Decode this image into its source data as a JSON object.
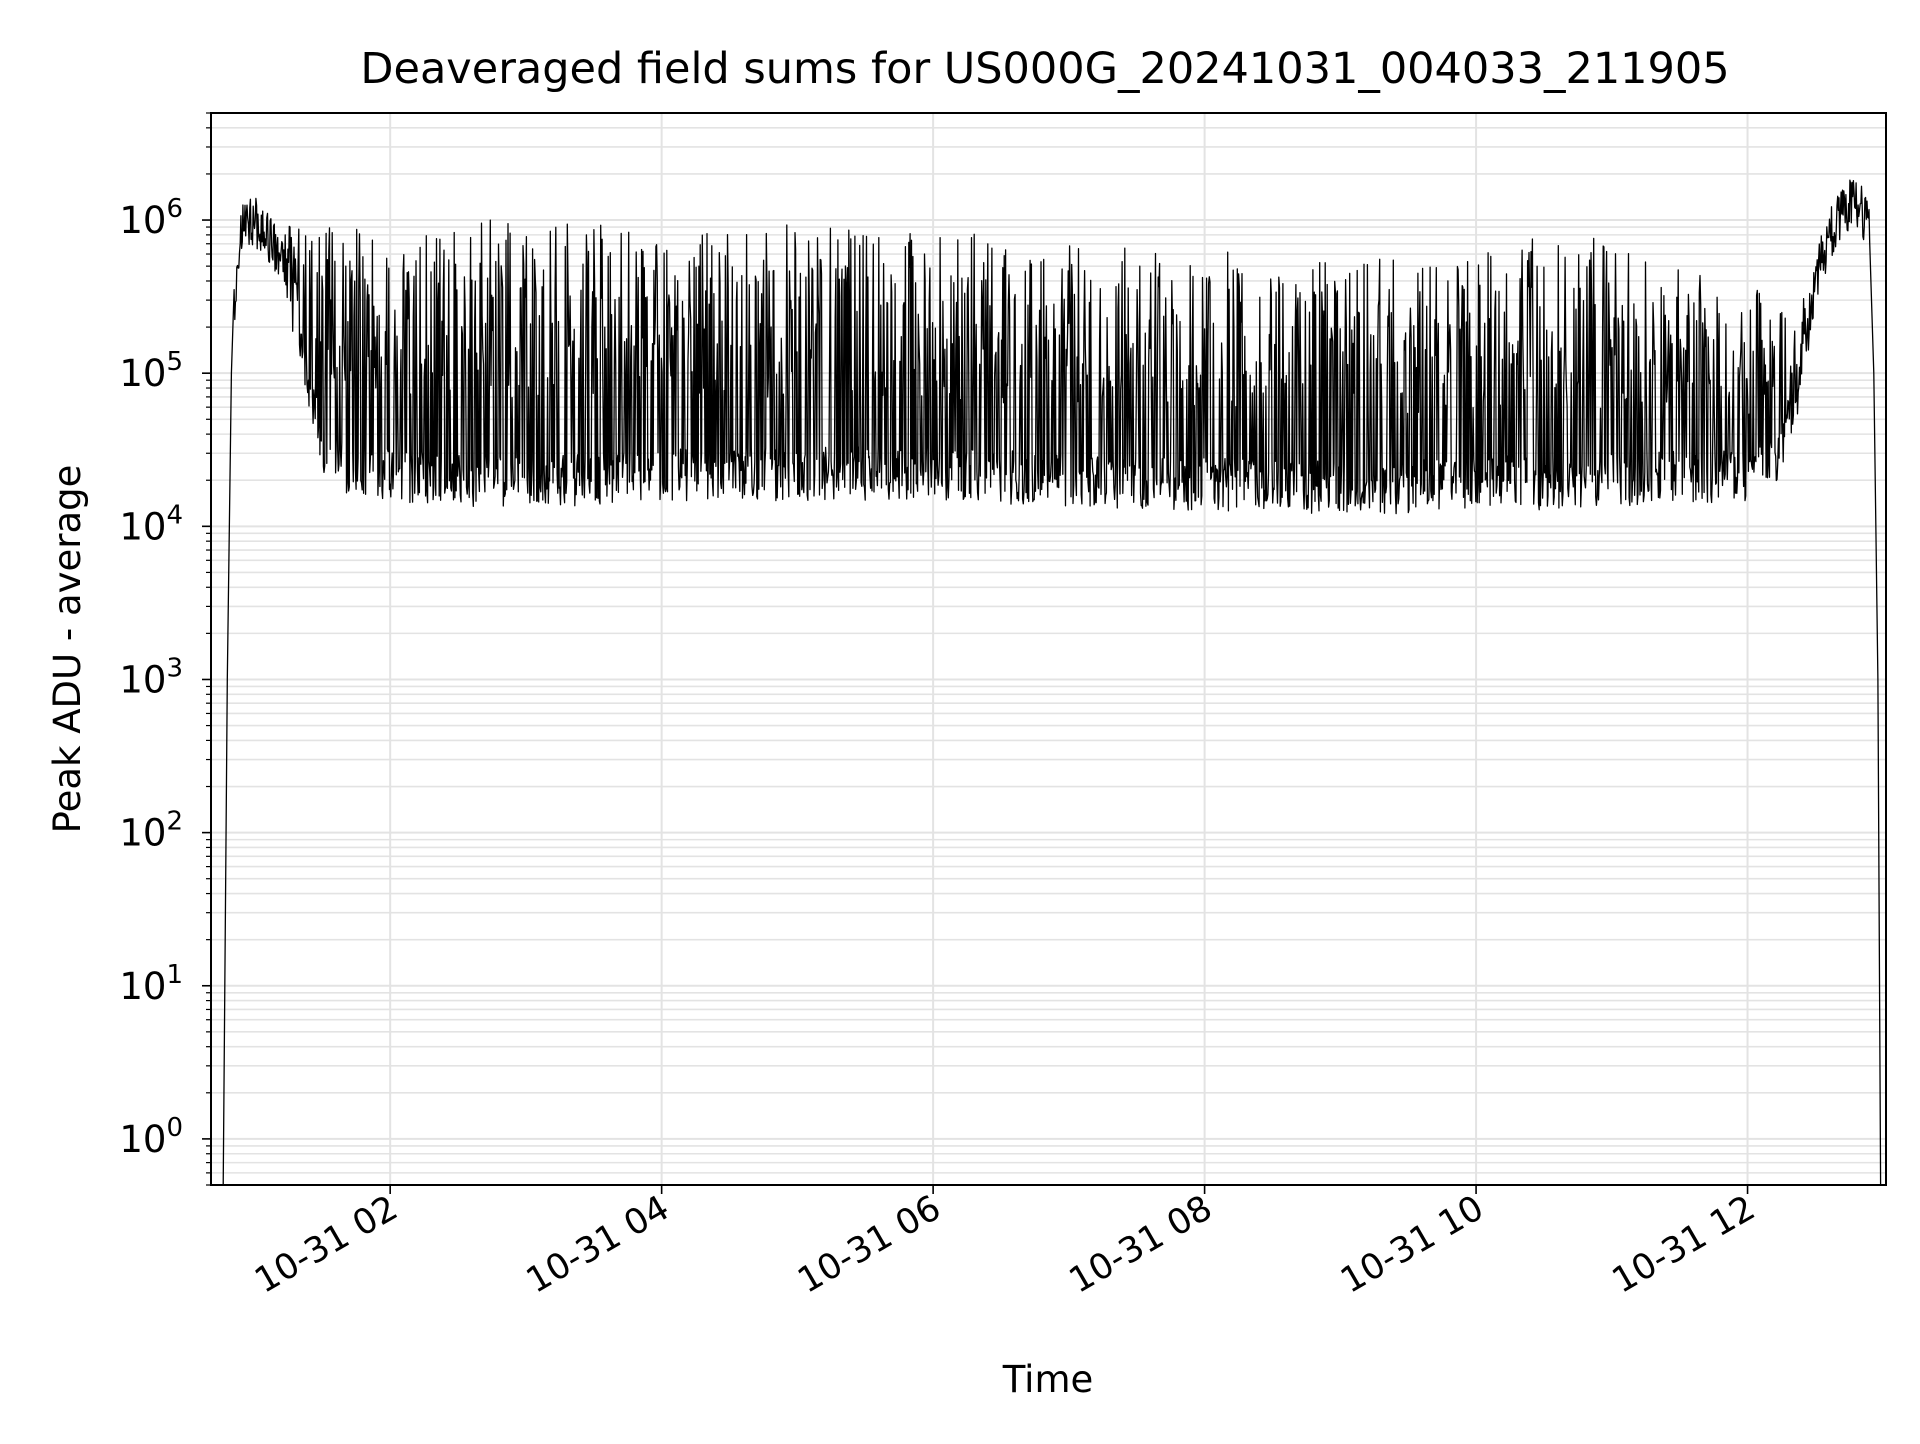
{
  "chart_data": {
    "type": "line",
    "title": "Deaveraged field sums for US000G_20241031_004033_211905",
    "xlabel": "Time",
    "ylabel": "Peak ADU - average",
    "x_tick_labels": [
      "10-31 02",
      "10-31 04",
      "10-31 06",
      "10-31 08",
      "10-31 10",
      "10-31 12"
    ],
    "x_ticks_hours": [
      2,
      4,
      6,
      8,
      10,
      12
    ],
    "xlim_hours": [
      0.68,
      13.02
    ],
    "y_scale": "log",
    "ylim": [
      0.5,
      5000000
    ],
    "y_tick_values": [
      1,
      10,
      100,
      1000,
      10000,
      100000,
      1000000
    ],
    "y_tick_labels": [
      {
        "base": "10",
        "exp": "0"
      },
      {
        "base": "10",
        "exp": "1"
      },
      {
        "base": "10",
        "exp": "2"
      },
      {
        "base": "10",
        "exp": "3"
      },
      {
        "base": "10",
        "exp": "4"
      },
      {
        "base": "10",
        "exp": "5"
      },
      {
        "base": "10",
        "exp": "6"
      }
    ],
    "grid": true,
    "legend": "none",
    "series": [
      {
        "color": "#000000",
        "envelope_x_hours": [
          0.85,
          0.9,
          1.0,
          1.1,
          1.2,
          1.3,
          1.4,
          1.5,
          1.6,
          2.0,
          2.5,
          3.0,
          3.5,
          4.0,
          4.5,
          5.0,
          5.5,
          6.0,
          6.5,
          7.0,
          7.5,
          8.0,
          8.5,
          9.0,
          9.5,
          10.0,
          10.5,
          11.0,
          11.5,
          12.0,
          12.2,
          12.4,
          12.5,
          12.6,
          12.7,
          12.8,
          12.9
        ],
        "baseline_values": [
          300000,
          900000,
          1000000,
          800000,
          500000,
          200000,
          80000,
          35000,
          25000,
          22000,
          20000,
          20000,
          20000,
          22000,
          22000,
          22000,
          22000,
          22000,
          21000,
          20000,
          19000,
          19000,
          18000,
          18000,
          18000,
          20000,
          19000,
          20000,
          21000,
          21000,
          25000,
          100000,
          400000,
          800000,
          1100000,
          1400000,
          800000
        ],
        "spike_peak_values": [
          300000,
          1100000,
          2300000,
          900000,
          1000000,
          1000000,
          1000000,
          1000000,
          1000000,
          1000000,
          1000000,
          1000000,
          1000000,
          1000000,
          1000000,
          1000000,
          1000000,
          900000,
          800000,
          700000,
          700000,
          650000,
          600000,
          600000,
          550000,
          600000,
          950000,
          700000,
          500000,
          400000,
          300000,
          300000,
          600000,
          1000000,
          1800000,
          1400000,
          800000
        ]
      }
    ]
  }
}
